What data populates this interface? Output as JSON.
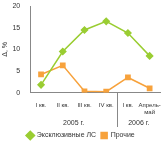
{
  "chart_data": {
    "type": "line",
    "y_label": "Δ, %",
    "categories": [
      "I кв.",
      "II кв.",
      "III кв.",
      "IV кв.",
      "I кв.",
      "Апрель-май"
    ],
    "category_groups": [
      {
        "label": "2005 г.",
        "count": 4
      },
      {
        "label": "2006 г.",
        "count": 2
      }
    ],
    "series": [
      {
        "name": "Эксклюзивные ЛС",
        "color": "#9acd32",
        "marker": "diamond",
        "values": [
          1.8,
          9.5,
          14.5,
          16.5,
          13.8,
          8.5
        ]
      },
      {
        "name": "Прочие",
        "color": "#f7a23c",
        "marker": "square",
        "values": [
          4.2,
          6.3,
          0.3,
          0.2,
          3.5,
          1.0
        ]
      }
    ],
    "ylim": [
      0,
      20
    ],
    "yticks": [
      0,
      5,
      10,
      15,
      20
    ],
    "grid": false,
    "legend": "bottom"
  }
}
